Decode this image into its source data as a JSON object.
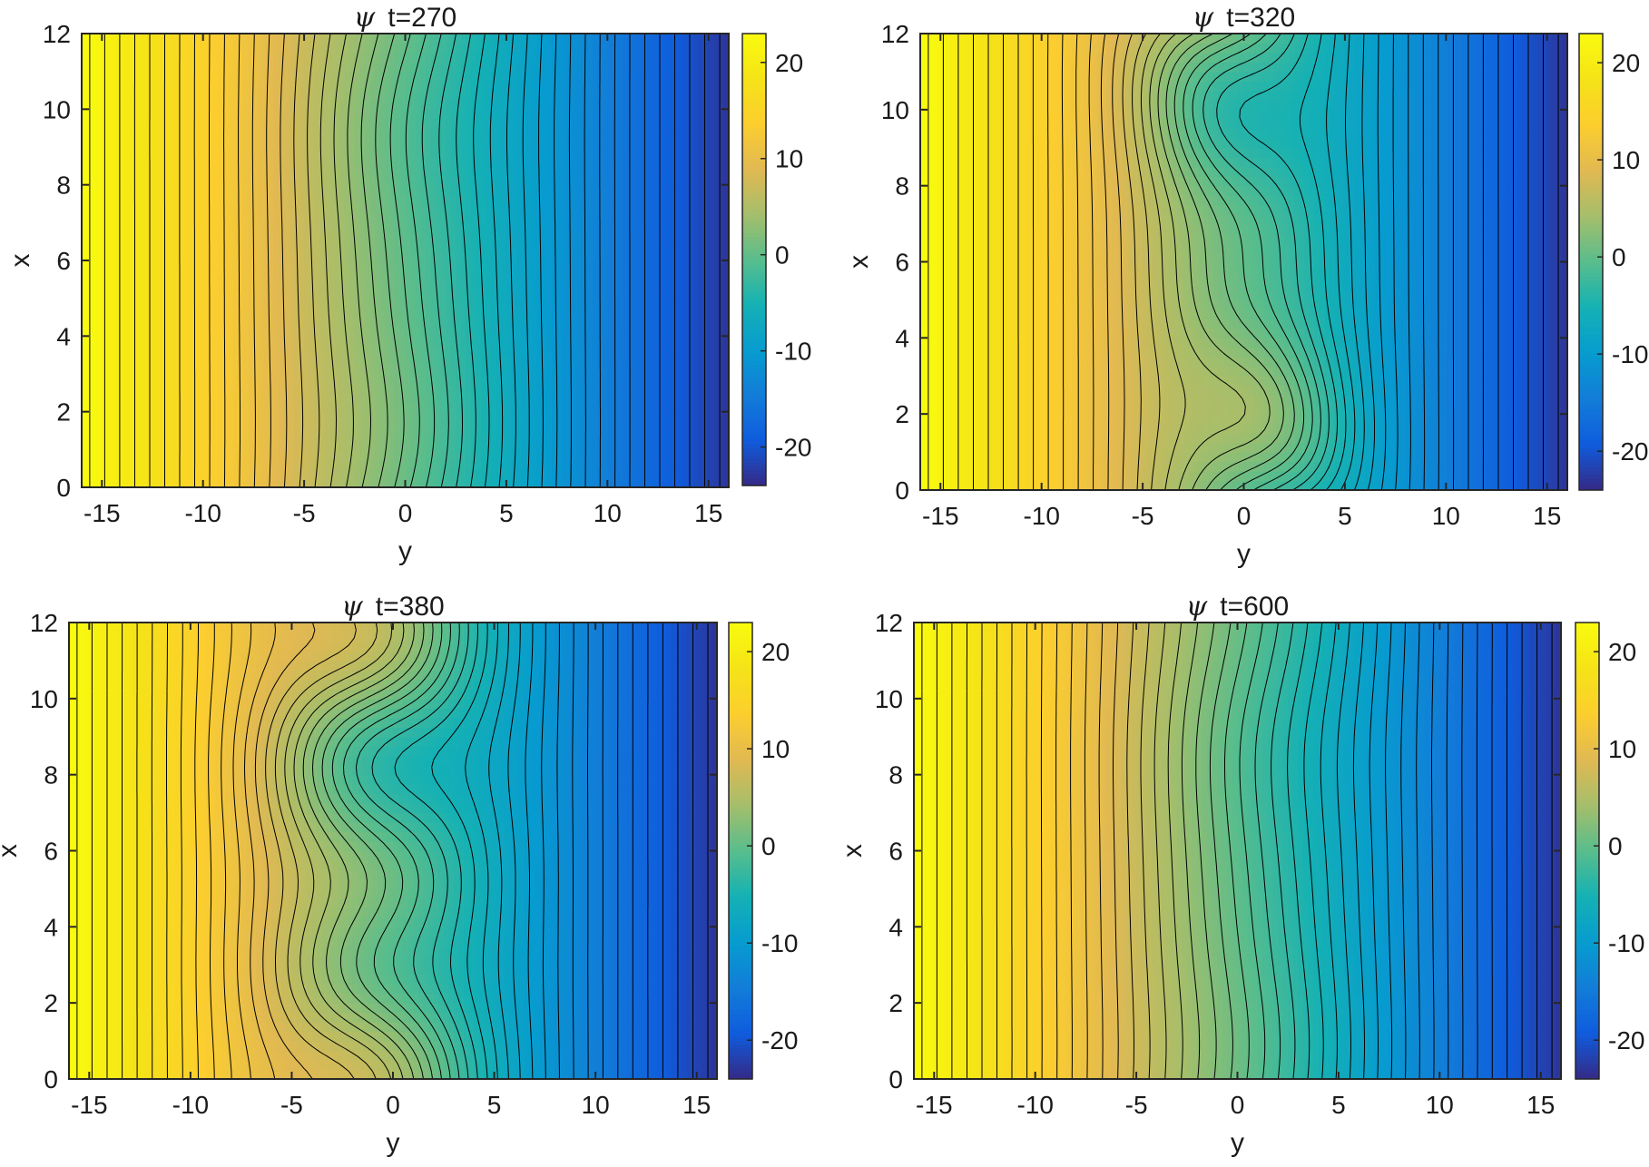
{
  "chart_data": [
    {
      "type": "heatmap",
      "title_symbol": "ψ",
      "title": "t=270",
      "xlabel": "y",
      "ylabel": "x",
      "xlim": [
        -16,
        16
      ],
      "ylim": [
        0,
        12
      ],
      "xticks": [
        -15,
        -10,
        -5,
        0,
        5,
        10,
        15
      ],
      "yticks": [
        0,
        2,
        4,
        6,
        8,
        10,
        12
      ],
      "colorbar": {
        "ticks": [
          20,
          10,
          0,
          -10,
          -20
        ],
        "range": [
          -24,
          23
        ],
        "colormap": "parula"
      },
      "contour_levels": 44,
      "perturbation": {
        "center_y": 0,
        "amplitude": 0.9,
        "width": 3.5,
        "shear": 0,
        "phase": 0.3,
        "osc": 0.6
      }
    },
    {
      "type": "heatmap",
      "title_symbol": "ψ",
      "title": "t=320",
      "xlabel": "y",
      "ylabel": "x",
      "xlim": [
        -16,
        16
      ],
      "ylim": [
        0,
        12
      ],
      "xticks": [
        -15,
        -10,
        -5,
        0,
        5,
        10,
        15
      ],
      "yticks": [
        0,
        2,
        4,
        6,
        8,
        10,
        12
      ],
      "colorbar": {
        "ticks": [
          20,
          10,
          0,
          -10,
          -20
        ],
        "range": [
          -24,
          23
        ],
        "colormap": "parula"
      },
      "contour_levels": 44,
      "perturbation": {
        "center_y": 0,
        "amplitude": 4.0,
        "width": 2.6,
        "shear": -0.25,
        "phase": 0.0,
        "osc": 1.0
      }
    },
    {
      "type": "heatmap",
      "title_symbol": "ψ",
      "title": "t=380",
      "xlabel": "y",
      "ylabel": "x",
      "xlim": [
        -16,
        16
      ],
      "ylim": [
        0,
        12
      ],
      "xticks": [
        -15,
        -10,
        -5,
        0,
        5,
        10,
        15
      ],
      "yticks": [
        0,
        2,
        4,
        6,
        8,
        10,
        12
      ],
      "colorbar": {
        "ticks": [
          20,
          10,
          0,
          -10,
          -20
        ],
        "range": [
          -24,
          23
        ],
        "colormap": "parula"
      },
      "contour_levels": 44,
      "perturbation": {
        "center_y": -1,
        "amplitude": 3.0,
        "width": 3.2,
        "shear": 0,
        "phase": 1.2,
        "osc": 2.0
      }
    },
    {
      "type": "heatmap",
      "title_symbol": "ψ",
      "title": "t=600",
      "xlabel": "y",
      "ylabel": "x",
      "xlim": [
        -16,
        16
      ],
      "ylim": [
        0,
        12
      ],
      "xticks": [
        -15,
        -10,
        -5,
        0,
        5,
        10,
        15
      ],
      "yticks": [
        0,
        2,
        4,
        6,
        8,
        10,
        12
      ],
      "colorbar": {
        "ticks": [
          20,
          10,
          0,
          -10,
          -20
        ],
        "range": [
          -24,
          23
        ],
        "colormap": "parula"
      },
      "contour_levels": 44,
      "perturbation": {
        "center_y": 1,
        "amplitude": 0.8,
        "width": 4.0,
        "shear": 0,
        "phase": 0.8,
        "osc": 0.5
      }
    }
  ]
}
